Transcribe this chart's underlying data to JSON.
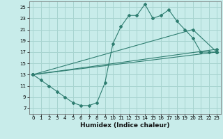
{
  "xlabel": "Humidex (Indice chaleur)",
  "ylabel": "",
  "background_color": "#c8ecea",
  "grid_color": "#a8d4d0",
  "line_color": "#2e7d70",
  "xlim": [
    -0.5,
    23.5
  ],
  "ylim": [
    6,
    26
  ],
  "xticks": [
    0,
    1,
    2,
    3,
    4,
    5,
    6,
    7,
    8,
    9,
    10,
    11,
    12,
    13,
    14,
    15,
    16,
    17,
    18,
    19,
    20,
    21,
    22,
    23
  ],
  "yticks": [
    7,
    9,
    11,
    13,
    15,
    17,
    19,
    21,
    23,
    25
  ],
  "line1_x": [
    0,
    1,
    2,
    3,
    4,
    5,
    6,
    7,
    8,
    9,
    10,
    11,
    12,
    13,
    14,
    15,
    16,
    17,
    18,
    19,
    20,
    21,
    22,
    23
  ],
  "line1_y": [
    13,
    12,
    11,
    10,
    9,
    8,
    7.5,
    7.5,
    8,
    11.5,
    18.5,
    21.5,
    23.5,
    23.5,
    25.5,
    23,
    23.5,
    24.5,
    22.5,
    21,
    19.5,
    17,
    17,
    17
  ],
  "line2_x": [
    0,
    23
  ],
  "line2_y": [
    13,
    17
  ],
  "line3_x": [
    0,
    23
  ],
  "line3_y": [
    13,
    17.5
  ],
  "line4_x": [
    0,
    20,
    23
  ],
  "line4_y": [
    13,
    21,
    17
  ]
}
